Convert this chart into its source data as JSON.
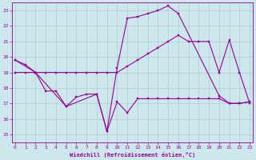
{
  "xlabel": "Windchill (Refroidissement éolien,°C)",
  "background_color": "#cce8ec",
  "grid_color": "#aacccc",
  "line_color": "#990099",
  "x_ticks": [
    0,
    1,
    2,
    3,
    4,
    5,
    6,
    7,
    8,
    9,
    10,
    11,
    12,
    13,
    14,
    15,
    16,
    17,
    18,
    19,
    20,
    21,
    22,
    23
  ],
  "y_ticks": [
    15,
    16,
    17,
    18,
    19,
    20,
    21,
    22,
    23
  ],
  "xlim": [
    -0.3,
    23.3
  ],
  "ylim": [
    14.5,
    23.5
  ],
  "line1_x": [
    0,
    1,
    2,
    3,
    4,
    5,
    6,
    7,
    8,
    9,
    10,
    11,
    12,
    13,
    14,
    15,
    16,
    17,
    18,
    19,
    20,
    21,
    22,
    23
  ],
  "line1_y": [
    19.8,
    19.5,
    19.0,
    17.8,
    17.8,
    16.8,
    17.4,
    17.6,
    17.6,
    15.2,
    17.1,
    16.4,
    17.3,
    17.3,
    17.3,
    17.3,
    17.3,
    17.3,
    17.3,
    17.3,
    17.3,
    17.0,
    17.0,
    17.1
  ],
  "line2_x": [
    0,
    1,
    2,
    3,
    4,
    5,
    6,
    7,
    8,
    9,
    10,
    11,
    12,
    13,
    14,
    15,
    16,
    17,
    18,
    19,
    20,
    21,
    22,
    23
  ],
  "line2_y": [
    19.0,
    19.0,
    19.0,
    19.0,
    19.0,
    19.0,
    19.0,
    19.0,
    19.0,
    19.0,
    19.0,
    19.4,
    19.8,
    20.2,
    20.6,
    21.0,
    21.4,
    21.0,
    21.0,
    21.0,
    19.0,
    21.1,
    19.0,
    17.0
  ],
  "line3_x": [
    0,
    2,
    5,
    8,
    9,
    10,
    11,
    12,
    13,
    14,
    15,
    16,
    20,
    21,
    22,
    23
  ],
  "line3_y": [
    19.8,
    19.0,
    16.8,
    17.6,
    15.2,
    19.3,
    22.5,
    22.6,
    22.8,
    23.0,
    23.3,
    22.8,
    17.5,
    17.0,
    17.0,
    17.1
  ]
}
